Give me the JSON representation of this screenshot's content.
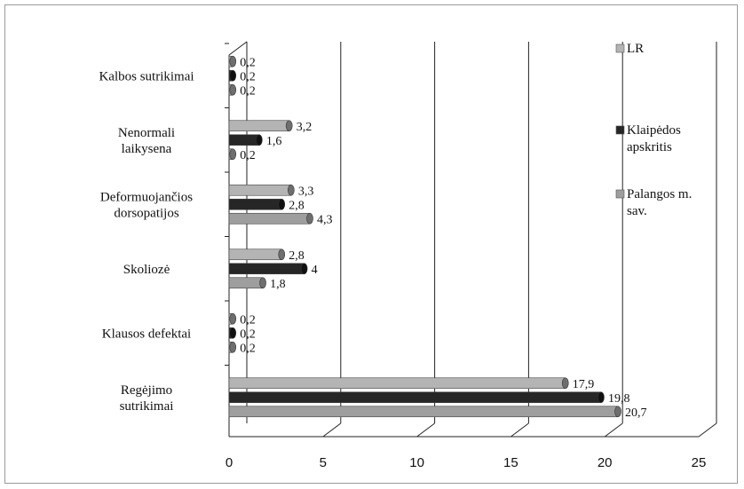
{
  "chart_data": {
    "type": "bar",
    "orientation": "horizontal",
    "title": "",
    "xlabel": "",
    "ylabel": "",
    "categories": [
      [
        "Regėjimo",
        "sutrikimai"
      ],
      [
        "Klausos defektai"
      ],
      [
        "Skoliozė"
      ],
      [
        "Deformuojančios",
        "dorsopatijos"
      ],
      [
        "Nenormali",
        "laikysena"
      ],
      [
        "Kalbos sutrikimai"
      ]
    ],
    "series": [
      {
        "name": "LR",
        "color": "#b4b4b4",
        "values": [
          17.9,
          0.2,
          2.8,
          3.3,
          3.2,
          0.2
        ],
        "labels": [
          "17,9",
          "0,2",
          "2,8",
          "3,3",
          "3,2",
          "0,2"
        ]
      },
      {
        "name": "Klaipėdos apskritis",
        "color": "#262626",
        "values": [
          19.8,
          0.2,
          4,
          2.8,
          1.6,
          0.2
        ],
        "labels": [
          "19,8",
          "0,2",
          "4",
          "2,8",
          "1,6",
          "0,2"
        ]
      },
      {
        "name": "Palangos m. sav.",
        "color": "#9e9e9e",
        "values": [
          20.7,
          0.2,
          1.8,
          4.3,
          0.2,
          0.2
        ],
        "labels": [
          "20,7",
          "0,2",
          "1,8",
          "4,3",
          "0,2",
          "0,2"
        ]
      }
    ],
    "legend_labels": [
      [
        "LR"
      ],
      [
        "Klaipėdos",
        "apskritis"
      ],
      [
        "Palangos m.",
        "sav."
      ]
    ],
    "xlim": [
      0,
      25
    ],
    "xticks": [
      "0",
      "5",
      "10",
      "15",
      "20",
      "25"
    ],
    "grid": true,
    "legend_position": "right"
  }
}
